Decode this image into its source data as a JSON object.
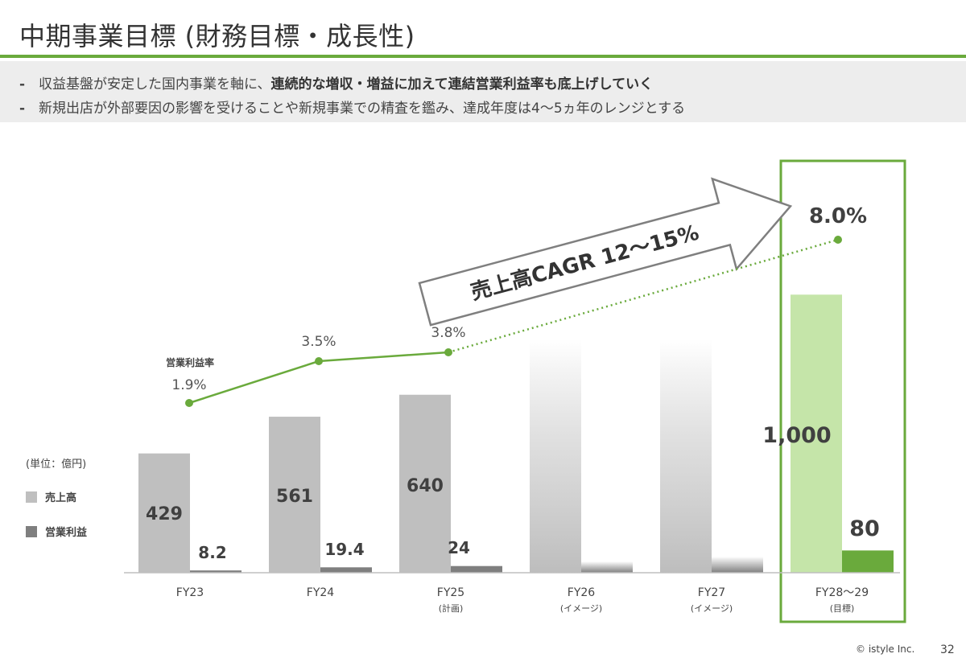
{
  "page": {
    "title": "中期事業目標 (財務目標・成長性)",
    "bullets": [
      {
        "dash": "-",
        "plain": "収益基盤が安定した国内事業を軸に、",
        "bold": "連続的な増収・増益に加えて連結営業利益率も底上げしていく"
      },
      {
        "dash": "-",
        "plain": "新規出店が外部要因の影響を受けることや新規事業での精査を鑑み、達成年度は4～5ヵ年のレンジとする",
        "bold": ""
      }
    ],
    "footer": {
      "copyright": "© istyle Inc.",
      "page_number": "32"
    }
  },
  "chart_data": {
    "type": "bar",
    "unit_label": "(単位：億円)",
    "categories": [
      {
        "label": "FY23",
        "sub": ""
      },
      {
        "label": "FY24",
        "sub": ""
      },
      {
        "label": "FY25",
        "sub": "(計画)"
      },
      {
        "label": "FY26",
        "sub": "(イメージ)"
      },
      {
        "label": "FY27",
        "sub": "(イメージ)"
      },
      {
        "label": "FY28～29",
        "sub": "(目標)"
      }
    ],
    "series": [
      {
        "name": "売上高",
        "values": [
          429,
          561,
          640,
          null,
          null,
          1000
        ],
        "value_labels": [
          "429",
          "561",
          "640",
          "",
          "",
          "1,000"
        ]
      },
      {
        "name": "営業利益",
        "values": [
          8.2,
          19.4,
          24,
          null,
          null,
          80
        ],
        "value_labels": [
          "8.2",
          "19.4",
          "24",
          "",
          "",
          "80"
        ]
      }
    ],
    "operating_margin": {
      "label": "営業利益率",
      "values": [
        1.9,
        3.5,
        3.8,
        null,
        null,
        8.0
      ],
      "value_labels": [
        "1.9%",
        "3.5%",
        "3.8%",
        "",
        "",
        "8.0%"
      ]
    },
    "arrow_annotation": "売上高CAGR 12～15%",
    "colors": {
      "revenue": "#bfbfbf",
      "profit": "#7f7f7f",
      "target_revenue": "#c5e5a9",
      "target_profit": "#6aaa3c",
      "margin_line": "#6aaa3c",
      "highlight_box": "#6aaa3c"
    },
    "ylim": [
      0,
      1100
    ],
    "legend_placement": "left"
  }
}
